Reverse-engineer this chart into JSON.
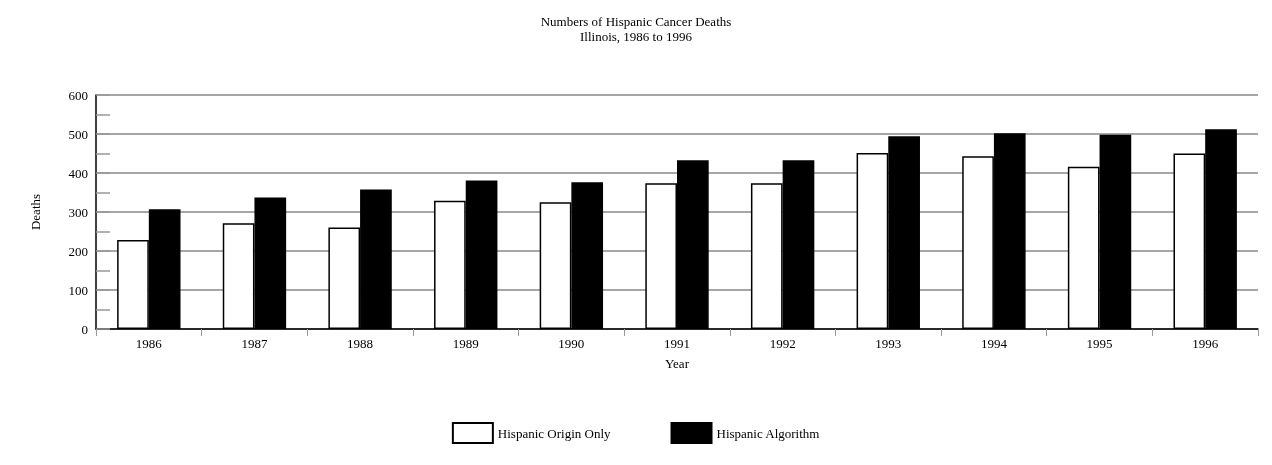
{
  "chart_data": {
    "type": "bar",
    "title": "Numbers of Hispanic Cancer Deaths",
    "subtitle": "Illinois, 1986 to 1996",
    "xlabel": "Year",
    "ylabel": "Deaths",
    "categories": [
      "1986",
      "1987",
      "1988",
      "1989",
      "1990",
      "1991",
      "1992",
      "1993",
      "1994",
      "1995",
      "1996"
    ],
    "series": [
      {
        "name": "Hispanic Origin Only",
        "color": "#ffffff",
        "values": [
          228,
          271,
          260,
          329,
          325,
          374,
          374,
          451,
          443,
          416,
          450
        ]
      },
      {
        "name": "Hispanic Algorithm",
        "color": "#000000",
        "values": [
          307,
          337,
          358,
          381,
          376,
          433,
          433,
          494,
          502,
          498,
          512
        ]
      }
    ],
    "ylim": [
      0,
      600
    ],
    "yticks": [
      0,
      {
        "value": 50,
        "label": null
      },
      100,
      {
        "value": 150,
        "label": null
      },
      200,
      {
        "value": 250,
        "label": null
      },
      300,
      {
        "value": 350,
        "label": null
      },
      400,
      {
        "value": 450,
        "label": null
      },
      500,
      {
        "value": 550,
        "label": null
      },
      600
    ],
    "grid": "y",
    "legend": "bottom"
  }
}
